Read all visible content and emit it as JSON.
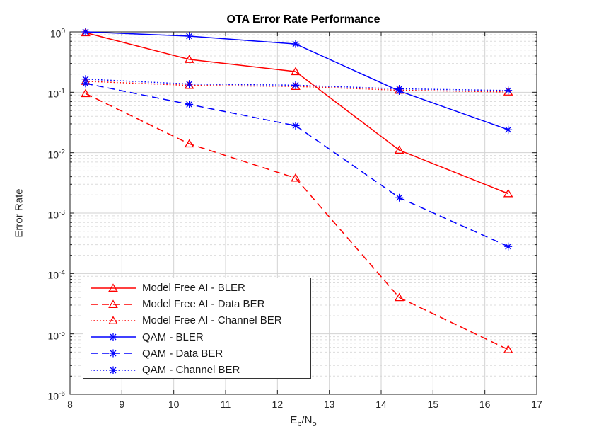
{
  "chart_data": {
    "type": "line",
    "title": "OTA Error Rate Performance",
    "xlabel": "E_b/N_o",
    "xlabel_rich": [
      {
        "t": "E",
        "sub": false
      },
      {
        "t": "b",
        "sub": true
      },
      {
        "t": "/N",
        "sub": false
      },
      {
        "t": "o",
        "sub": true
      }
    ],
    "ylabel": "Error Rate",
    "x_scale": "linear",
    "y_scale": "log",
    "xlim": [
      8,
      17
    ],
    "ylim": [
      1e-06,
      1
    ],
    "xticks": [
      8,
      9,
      10,
      11,
      12,
      13,
      14,
      15,
      16,
      17
    ],
    "ytick_exponents": [
      0,
      -1,
      -2,
      -3,
      -4,
      -5,
      -6
    ],
    "grid": true,
    "minor_grid": true,
    "legend_position": "lower-left",
    "background": "#ffffff",
    "axes_color": "#1f1f1f",
    "major_grid_color": "#d2d2d2",
    "minor_grid_color": "#dcdcdc",
    "x": [
      8.3,
      10.3,
      12.35,
      14.35,
      16.45
    ],
    "series": [
      {
        "name": "Model Free AI - BLER",
        "color": "#ff0000",
        "line": "solid",
        "marker": "triangle",
        "values": [
          0.97,
          0.35,
          0.22,
          0.011,
          0.0021
        ]
      },
      {
        "name": "Model Free AI - Data BER",
        "color": "#ff0000",
        "line": "dashed",
        "marker": "triangle",
        "values": [
          0.095,
          0.014,
          0.0038,
          4e-05,
          5.5e-06
        ]
      },
      {
        "name": "Model Free AI - Channel BER",
        "color": "#ff0000",
        "line": "dotted",
        "marker": "triangle",
        "values": [
          0.152,
          0.13,
          0.125,
          0.108,
          0.101
        ]
      },
      {
        "name": "QAM - BLER",
        "color": "#0000ff",
        "line": "solid",
        "marker": "asterisk",
        "values": [
          1.0,
          0.85,
          0.63,
          0.105,
          0.024
        ]
      },
      {
        "name": "QAM - Data BER",
        "color": "#0000ff",
        "line": "dashed",
        "marker": "asterisk",
        "values": [
          0.14,
          0.063,
          0.028,
          0.0018,
          0.00028
        ]
      },
      {
        "name": "QAM - Channel BER",
        "color": "#0000ff",
        "line": "dotted",
        "marker": "asterisk",
        "values": [
          0.165,
          0.137,
          0.131,
          0.114,
          0.107
        ]
      }
    ]
  }
}
